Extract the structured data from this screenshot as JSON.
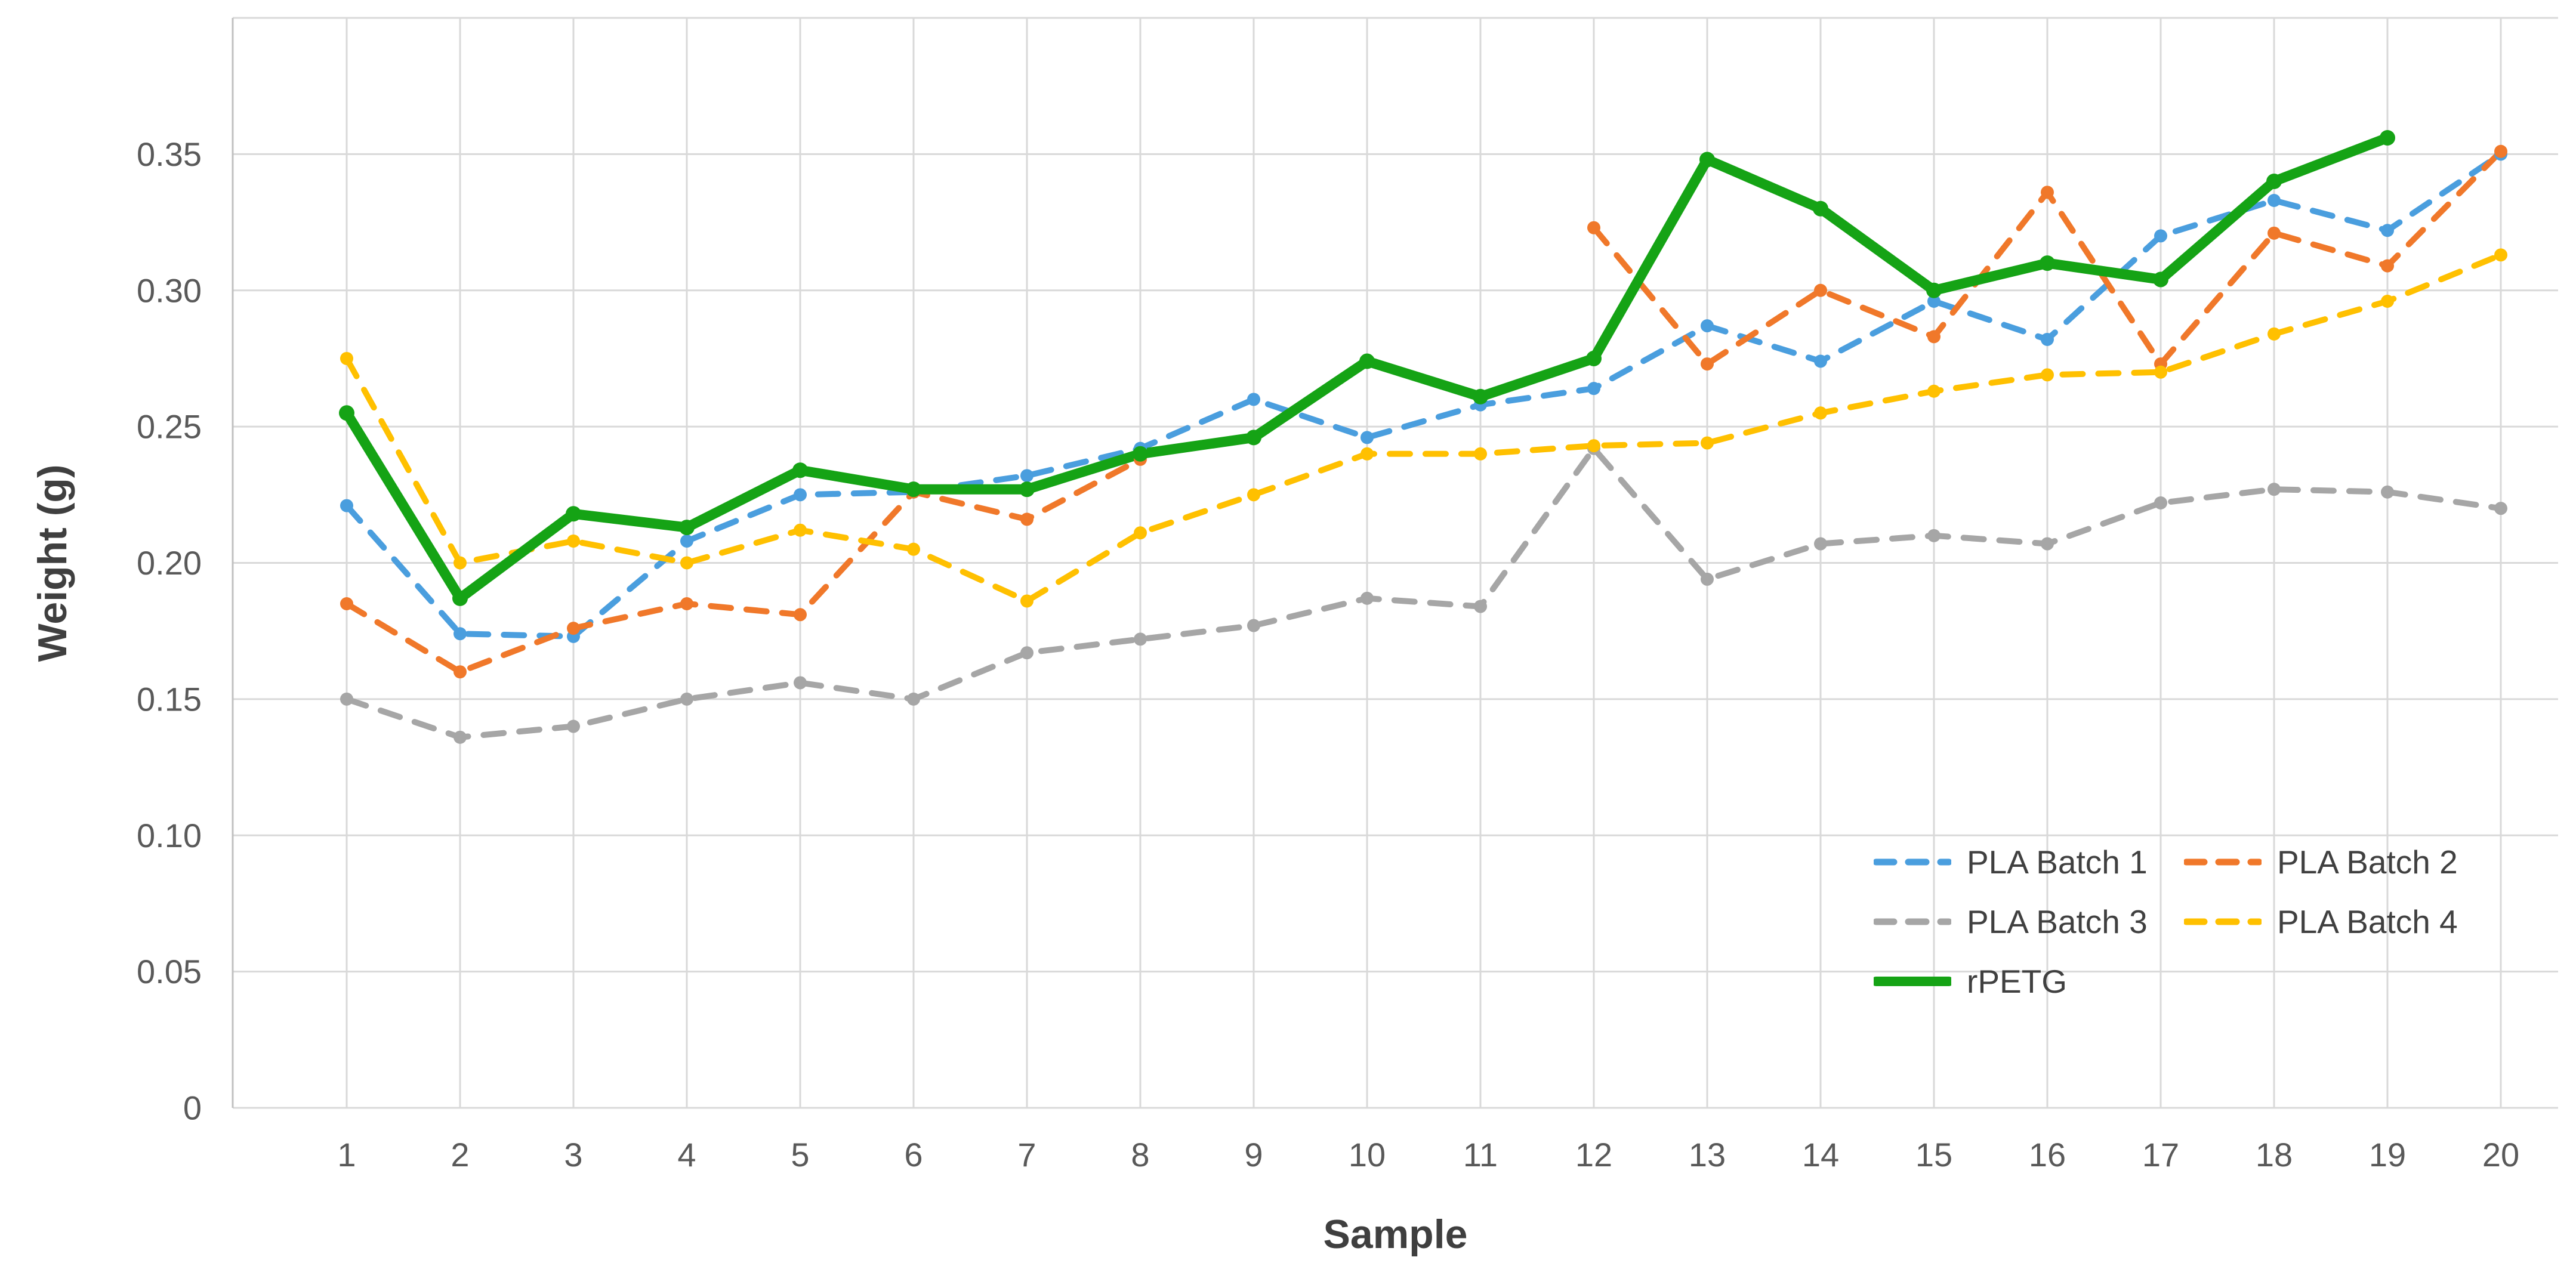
{
  "chart_data": {
    "type": "line",
    "title": "",
    "xlabel": "Sample",
    "ylabel": "Weight (g)",
    "x": [
      1,
      2,
      3,
      4,
      5,
      6,
      7,
      8,
      9,
      10,
      11,
      12,
      13,
      14,
      15,
      16,
      17,
      18,
      19,
      20
    ],
    "ylim": [
      0,
      0.4
    ],
    "ygrid_step": 0.05,
    "ytick_values": [
      0,
      0.05,
      0.1,
      0.15,
      0.2,
      0.25,
      0.3,
      0.35
    ],
    "ytick_labels": [
      "0",
      "0.05",
      "0.10",
      "0.15",
      "0.20",
      "0.25",
      "0.30",
      "0.35"
    ],
    "grid": true,
    "legend_position": "lower-right-inside",
    "series": [
      {
        "name": "PLA Batch 1",
        "color": "#4A9EDE",
        "style": "dashed",
        "values": [
          0.221,
          0.174,
          0.173,
          0.208,
          0.225,
          0.226,
          0.232,
          0.242,
          0.26,
          0.246,
          0.258,
          0.264,
          0.287,
          0.274,
          0.296,
          0.282,
          0.32,
          0.333,
          0.322,
          0.35
        ]
      },
      {
        "name": "PLA Batch 2",
        "color": "#F0782A",
        "style": "dashed",
        "values": [
          0.185,
          0.16,
          0.176,
          0.185,
          0.181,
          0.226,
          0.216,
          0.238,
          null,
          null,
          null,
          0.323,
          0.273,
          0.3,
          0.283,
          0.336,
          0.273,
          0.321,
          0.309,
          0.351
        ]
      },
      {
        "name": "PLA Batch 3",
        "color": "#A6A6A6",
        "style": "dashed",
        "values": [
          0.15,
          0.136,
          0.14,
          0.15,
          0.156,
          0.15,
          0.167,
          0.172,
          0.177,
          0.187,
          0.184,
          0.242,
          0.194,
          0.207,
          0.21,
          0.207,
          0.222,
          0.227,
          0.226,
          0.22
        ]
      },
      {
        "name": "PLA Batch 4",
        "color": "#FFC000",
        "style": "dashed",
        "values": [
          0.275,
          0.2,
          0.208,
          0.2,
          0.212,
          0.205,
          0.186,
          0.211,
          0.225,
          0.24,
          0.24,
          0.243,
          0.244,
          0.255,
          0.263,
          0.269,
          0.27,
          0.284,
          0.296,
          0.313
        ]
      },
      {
        "name": "rPETG",
        "color": "#15A315",
        "style": "solid",
        "values": [
          0.255,
          0.187,
          0.218,
          0.213,
          0.234,
          0.227,
          0.227,
          0.24,
          0.246,
          0.274,
          0.261,
          0.275,
          0.348,
          0.33,
          0.3,
          0.31,
          0.304,
          0.34,
          0.356,
          null
        ]
      }
    ],
    "colors": {
      "gridline": "#D9D9D9",
      "axis_line": "#C0C0C0",
      "tick_text": "#595959",
      "title_text": "#3F3F3F",
      "background": "#FFFFFF"
    }
  }
}
